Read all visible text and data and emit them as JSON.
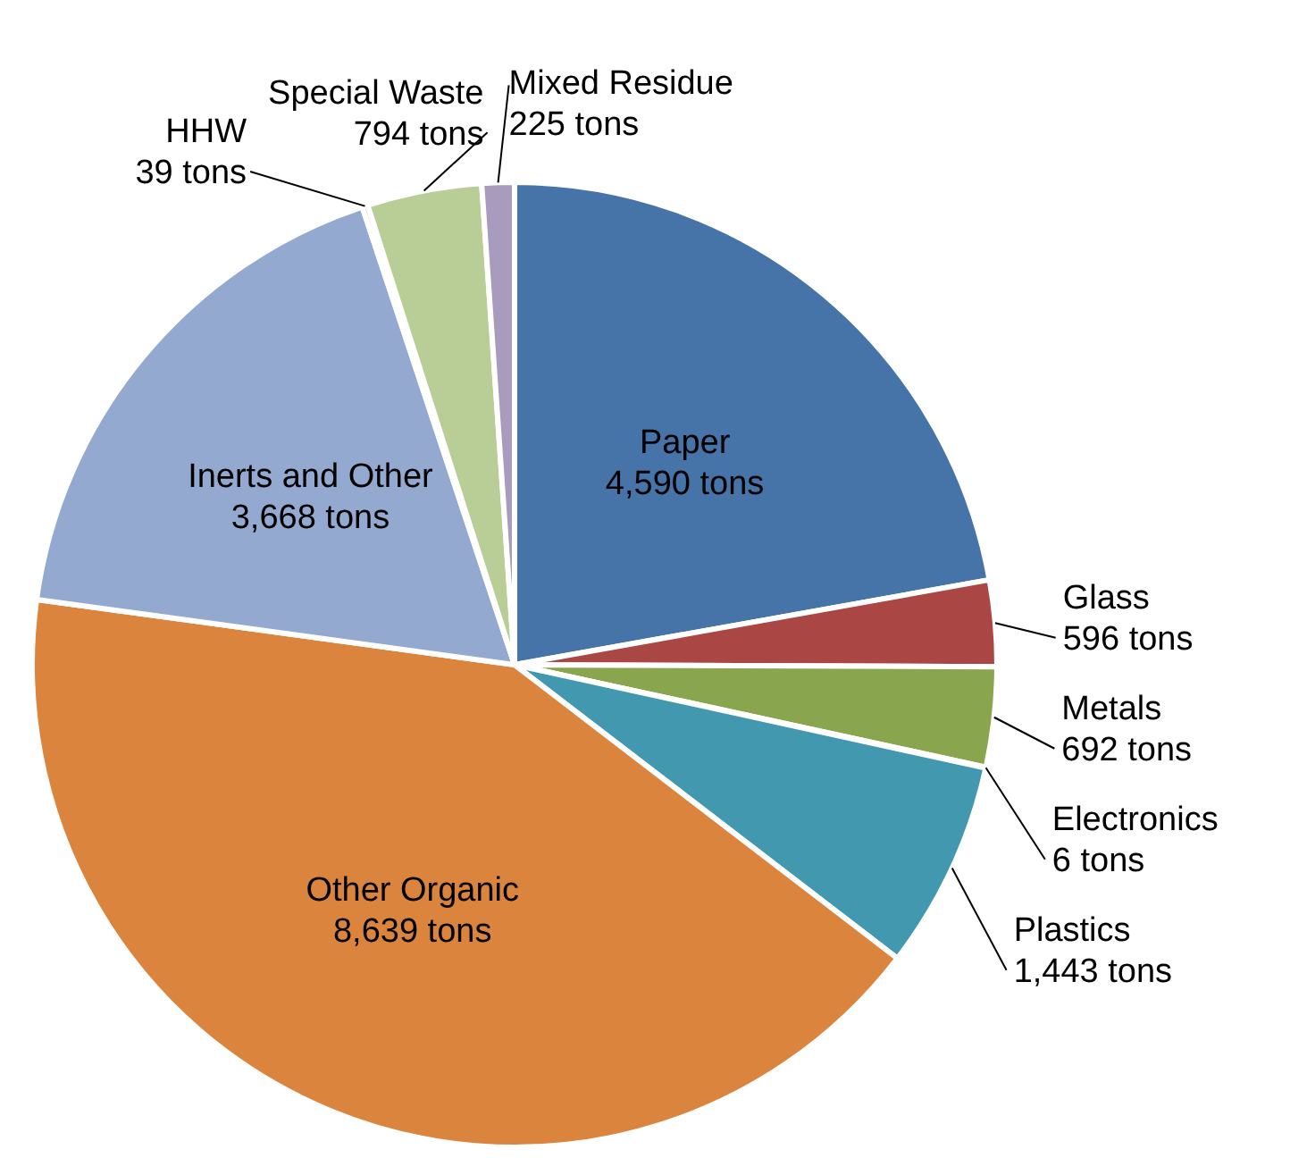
{
  "chart_data": {
    "type": "pie",
    "categories": [
      "Paper",
      "Glass",
      "Metals",
      "Electronics",
      "Plastics",
      "Other Organic",
      "Inerts and Other",
      "HHW",
      "Special Waste",
      "Mixed Residue"
    ],
    "values": [
      4590,
      596,
      692,
      6,
      1443,
      8639,
      3668,
      39,
      794,
      225
    ],
    "value_labels": [
      "4,590 tons",
      "596 tons",
      "692 tons",
      "6 tons",
      "1,443 tons",
      "8,639 tons",
      "3,668 tons",
      "39 tons",
      "794 tons",
      "225 tons"
    ],
    "colors": [
      "#4673a8",
      "#aa4643",
      "#89a54e",
      "#71588f",
      "#4198af",
      "#db843d",
      "#93a9cf",
      "#d19392",
      "#b9cd96",
      "#a99bbd"
    ]
  }
}
